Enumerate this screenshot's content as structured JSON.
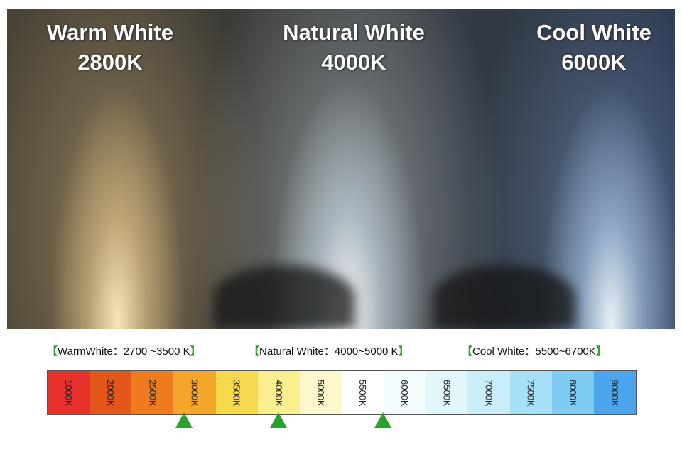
{
  "photo": {
    "labels": [
      {
        "name": "Warm White",
        "temperature": "2800K"
      },
      {
        "name": "Natural White",
        "temperature": "4000K"
      },
      {
        "name": "Cool White",
        "temperature": "6000K"
      }
    ]
  },
  "ranges": [
    {
      "open": "【",
      "name": "WarmWhite：",
      "range": "2700 ~3500 K",
      "close": "】"
    },
    {
      "open": "【",
      "name": "Natural White：",
      "range": "4000~5000 K",
      "close": "】"
    },
    {
      "open": "【",
      "name": "Cool White：",
      "range": "5500~6700K",
      "close": "】"
    }
  ],
  "scale": {
    "cells": [
      {
        "label": "1000K",
        "color": "#e8312a"
      },
      {
        "label": "2000K",
        "color": "#e4561a"
      },
      {
        "label": "2500K",
        "color": "#ee7b1e"
      },
      {
        "label": "3000K",
        "color": "#f4a62a"
      },
      {
        "label": "3500K",
        "color": "#f8d84c"
      },
      {
        "label": "4000K",
        "color": "#faee8e"
      },
      {
        "label": "5000K",
        "color": "#fdf7cc"
      },
      {
        "label": "5500K",
        "color": "#ffffff"
      },
      {
        "label": "6000K",
        "color": "#f3fbfd"
      },
      {
        "label": "6500K",
        "color": "#e3f6fb"
      },
      {
        "label": "7000K",
        "color": "#c9eef9"
      },
      {
        "label": "7500K",
        "color": "#a6e0f7"
      },
      {
        "label": "8000K",
        "color": "#7ecbf3"
      },
      {
        "label": "9000K",
        "color": "#4ba5ec"
      }
    ]
  }
}
